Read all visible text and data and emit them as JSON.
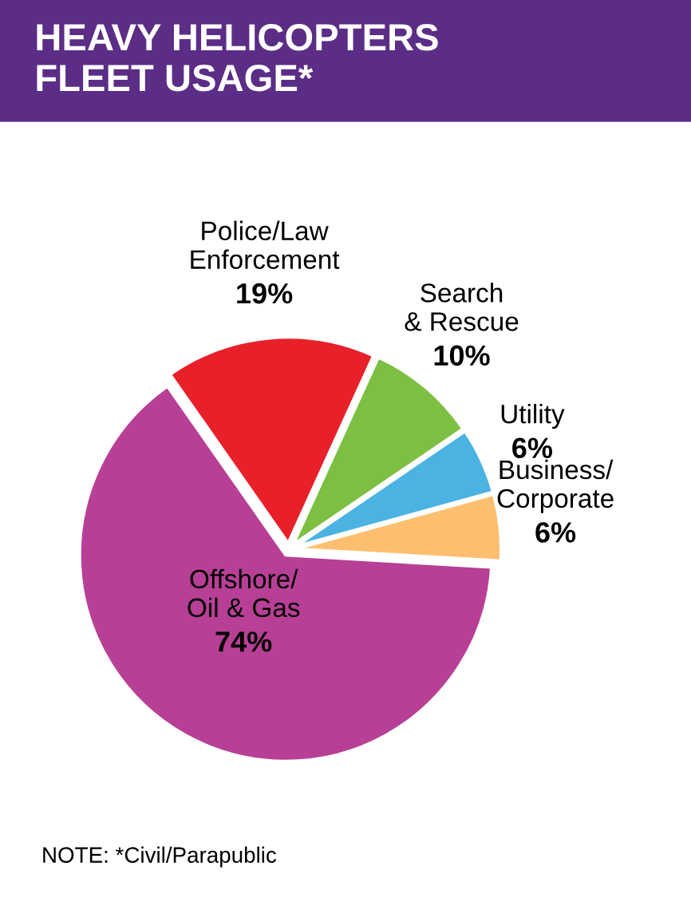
{
  "chart_data": {
    "type": "pie",
    "title": "HEAVY HELICOPTERS\nFLEET USAGE*",
    "categories": [
      "Police/Law\nEnforcement",
      "Search\n& Rescue",
      "Utility",
      "Business/\nCorporate",
      "Offshore/\nOil & Gas"
    ],
    "values": [
      19,
      10,
      6,
      6,
      74
    ],
    "value_labels": [
      "19%",
      "10%",
      "6%",
      "6%",
      "74%"
    ],
    "colors": [
      "#e8202a",
      "#7cbf42",
      "#4ab3e2",
      "#fdbf6f",
      "#b83f96"
    ],
    "annotations": [
      "NOTE: *Civil/Parapublic"
    ]
  }
}
